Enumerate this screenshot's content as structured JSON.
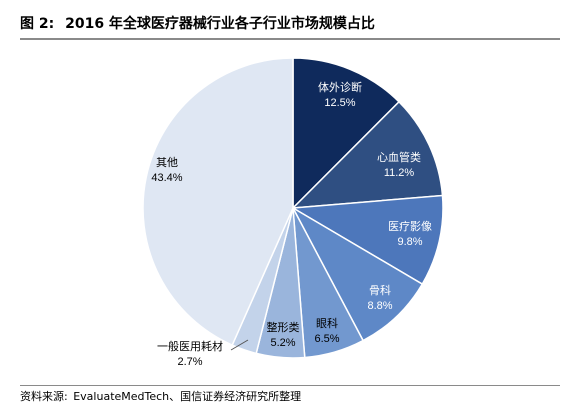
{
  "figure": {
    "label": "图 2:",
    "title": "2016 年全球医疗器械行业各子行业市场规模占比"
  },
  "source": {
    "prefix": "资料来源:",
    "text": "EvaluateMedTech、国信证券经济研究所整理"
  },
  "chart_data": {
    "type": "pie",
    "start_angle_deg": 0,
    "direction": "clockwise",
    "slices": [
      {
        "name": "体外诊断",
        "value": 12.5,
        "label": "12.5%",
        "color": "#0f2a5c",
        "text_color": "#ffffff"
      },
      {
        "name": "心血管类",
        "value": 11.2,
        "label": "11.2%",
        "color": "#2f4f82",
        "text_color": "#ffffff"
      },
      {
        "name": "医疗影像",
        "value": 9.8,
        "label": "9.8%",
        "color": "#4d77bb",
        "text_color": "#ffffff"
      },
      {
        "name": "骨科",
        "value": 8.8,
        "label": "8.8%",
        "color": "#5e88c7",
        "text_color": "#ffffff"
      },
      {
        "name": "眼科",
        "value": 6.5,
        "label": "6.5%",
        "color": "#7298cf",
        "text_color": "#000000"
      },
      {
        "name": "整形类",
        "value": 5.2,
        "label": "5.2%",
        "color": "#9ab5dc",
        "text_color": "#000000"
      },
      {
        "name": "一般医用耗材",
        "value": 2.7,
        "label": "2.7%",
        "color": "#c3d3ea",
        "text_color": "#000000"
      },
      {
        "name": "其他",
        "value": 43.4,
        "label": "43.4%",
        "color": "#dfe7f3",
        "text_color": "#000000"
      }
    ]
  }
}
